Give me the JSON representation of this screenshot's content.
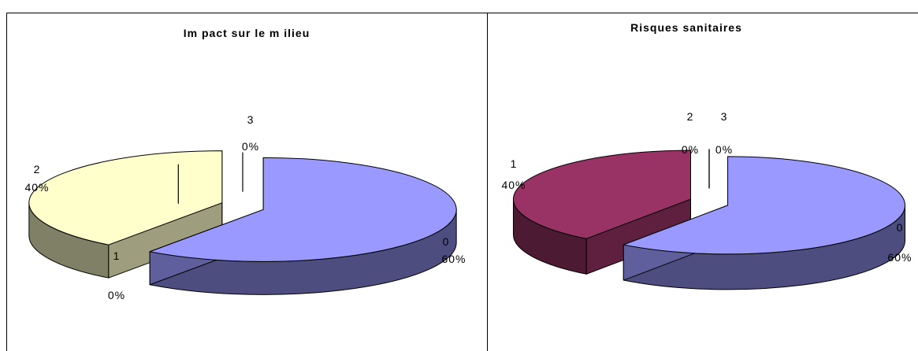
{
  "chart_data": [
    {
      "type": "pie",
      "title": "Im pact sur le m ilieu",
      "slices": [
        {
          "category": "0",
          "value": 60,
          "percent_label": "60%",
          "color": "#9999ff"
        },
        {
          "category": "1",
          "value": 0,
          "percent_label": "0%",
          "color": "#993366"
        },
        {
          "category": "2",
          "value": 40,
          "percent_label": "40%",
          "color": "#ffffcc"
        },
        {
          "category": "3",
          "value": 0,
          "percent_label": "0%",
          "color": "#ccffff"
        }
      ],
      "style": "3d-exploded"
    },
    {
      "type": "pie",
      "title": "Risques sanitaires",
      "slices": [
        {
          "category": "0",
          "value": 60,
          "percent_label": "60%",
          "color": "#9999ff"
        },
        {
          "category": "1",
          "value": 40,
          "percent_label": "40%",
          "color": "#993366"
        },
        {
          "category": "2",
          "value": 0,
          "percent_label": "0%",
          "color": "#ffffcc"
        },
        {
          "category": "3",
          "value": 0,
          "percent_label": "0%",
          "color": "#ccffff"
        }
      ],
      "style": "3d-exploded"
    }
  ]
}
